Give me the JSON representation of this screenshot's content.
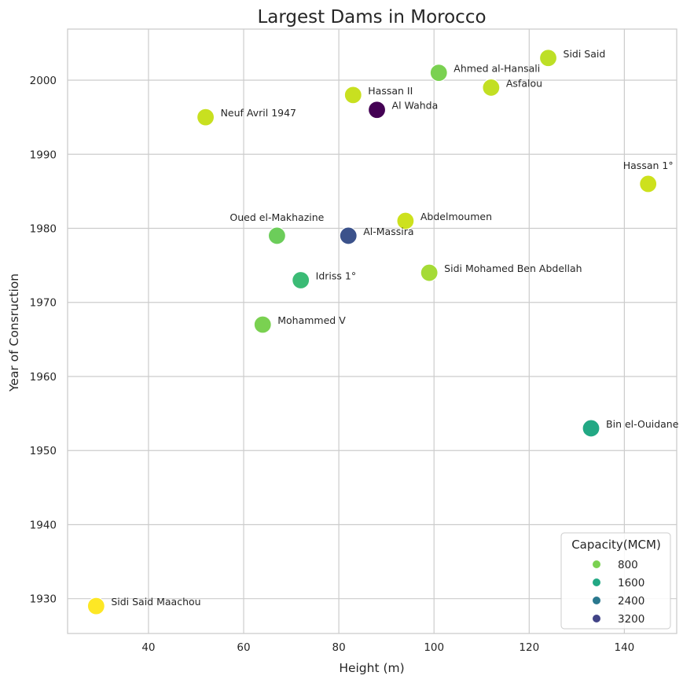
{
  "chart_data": {
    "type": "scatter",
    "title": "Largest Dams in Morocco",
    "xlabel": "Height (m)",
    "ylabel": "Year of Consruction",
    "xlim": [
      23,
      151
    ],
    "ylim": [
      1925.3,
      2006.9
    ],
    "xticks": [
      40,
      60,
      80,
      100,
      120,
      140
    ],
    "yticks": [
      1930,
      1940,
      1950,
      1960,
      1970,
      1980,
      1990,
      2000
    ],
    "grid": true,
    "legend": {
      "title": "Capacity(MCM)",
      "placement": "bottom-right",
      "entries": [
        {
          "label": "800",
          "color": "#7ad151"
        },
        {
          "label": "1600",
          "color": "#22a884"
        },
        {
          "label": "2400",
          "color": "#2a788e"
        },
        {
          "label": "3200",
          "color": "#414487"
        }
      ]
    },
    "points": [
      {
        "name": "Sidi Said",
        "x": 124,
        "y": 2003,
        "color": "#bddf26",
        "label_pos": "right"
      },
      {
        "name": "Ahmed al-Hansali",
        "x": 101,
        "y": 2001,
        "color": "#7ad151",
        "label_pos": "right"
      },
      {
        "name": "Asfalou",
        "x": 112,
        "y": 1999,
        "color": "#c2df23",
        "label_pos": "right"
      },
      {
        "name": "Hassan II",
        "x": 83,
        "y": 1998,
        "color": "#c8e020",
        "label_pos": "right"
      },
      {
        "name": "Al Wahda",
        "x": 88,
        "y": 1996,
        "color": "#440154",
        "label_pos": "right"
      },
      {
        "name": "Neuf Avril 1947",
        "x": 52,
        "y": 1995,
        "color": "#c8e020",
        "label_pos": "right"
      },
      {
        "name": "Hassan 1°",
        "x": 145,
        "y": 1986,
        "color": "#cde11d",
        "label_pos": "above"
      },
      {
        "name": "Abdelmoumen",
        "x": 94,
        "y": 1981,
        "color": "#cde11d",
        "label_pos": "right"
      },
      {
        "name": "Oued el-Makhazine",
        "x": 67,
        "y": 1979,
        "color": "#6ccd5a",
        "label_pos": "above"
      },
      {
        "name": "Al-Massira",
        "x": 82,
        "y": 1979,
        "color": "#3b528b",
        "label_pos": "right"
      },
      {
        "name": "Sidi Mohamed Ben Abdellah",
        "x": 99,
        "y": 1974,
        "color": "#a5db36",
        "label_pos": "right"
      },
      {
        "name": "Idriss 1°",
        "x": 72,
        "y": 1973,
        "color": "#3bbb75",
        "label_pos": "right"
      },
      {
        "name": "Mohammed V",
        "x": 64,
        "y": 1967,
        "color": "#7ad151",
        "label_pos": "right"
      },
      {
        "name": "Bin el-Ouidane",
        "x": 133,
        "y": 1953,
        "color": "#22a884",
        "label_pos": "right"
      },
      {
        "name": "Sidi Said Maachou",
        "x": 29,
        "y": 1929,
        "color": "#fde725",
        "label_pos": "right"
      }
    ]
  }
}
